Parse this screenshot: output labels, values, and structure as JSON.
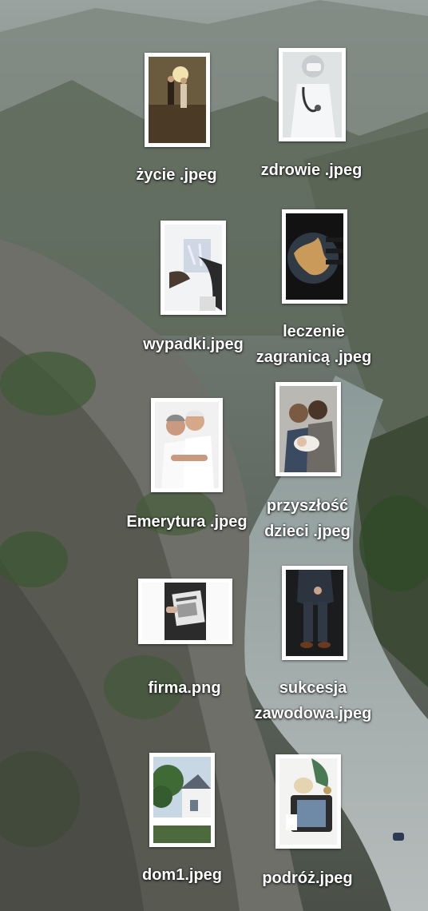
{
  "desktop": {
    "wallpaper": "canyon-river-landscape",
    "files": [
      {
        "name": "życie .jpeg",
        "icon": "family-photo-icon"
      },
      {
        "name": "zdrowie .jpeg",
        "icon": "doctor-photo-icon"
      },
      {
        "name": "wypadki.jpeg",
        "icon": "xray-photo-icon"
      },
      {
        "line1": "leczenie",
        "line2": "zagranicą .jpeg",
        "icon": "globe-photo-icon"
      },
      {
        "name": "Emerytura .jpeg",
        "icon": "seniors-photo-icon"
      },
      {
        "line1": "przyszłość",
        "line2": "dzieci .jpeg",
        "icon": "parents-baby-photo-icon"
      },
      {
        "name": "firma.png",
        "icon": "newspaper-photo-icon"
      },
      {
        "line1": "sukcesja",
        "line2": "zawodowa.jpeg",
        "icon": "businessman-photo-icon"
      },
      {
        "name": "dom1.jpeg",
        "icon": "house-photo-icon"
      },
      {
        "name": "podróż.jpeg",
        "icon": "suitcase-photo-icon"
      }
    ]
  }
}
